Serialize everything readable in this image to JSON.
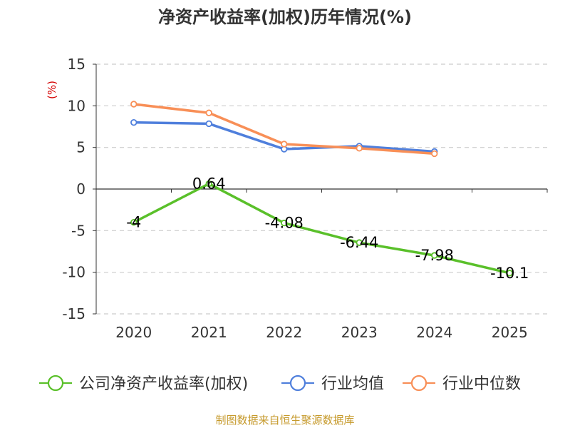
{
  "chart_data": {
    "type": "line",
    "title": "净资产收益率(加权)历年情况(%)",
    "ylabel": "(%)",
    "xlabel": "",
    "categories": [
      "2020",
      "2021",
      "2022",
      "2023",
      "2024",
      "2025"
    ],
    "ylim": [
      -15,
      15
    ],
    "yticks": [
      15,
      10,
      5,
      0,
      -5,
      -10,
      -15
    ],
    "ytick_labels": [
      "15",
      "10",
      "5",
      "0",
      "-5",
      "-10",
      "-15"
    ],
    "grid": true,
    "legend_position": "bottom",
    "series": [
      {
        "name": "公司净资产收益率(加权)",
        "color": "#5ac02a",
        "values": [
          -4,
          0.64,
          -4.08,
          -6.44,
          -7.98,
          -10.1
        ],
        "data_labels": [
          "-4",
          "0.64",
          "-4.08",
          "-6.44",
          "-7.98",
          "-10.1"
        ]
      },
      {
        "name": "行业均值",
        "color": "#4f7fdc",
        "values": [
          8.0,
          7.85,
          4.8,
          5.15,
          4.5,
          null
        ]
      },
      {
        "name": "行业中位数",
        "color": "#f88f57",
        "values": [
          10.2,
          9.15,
          5.4,
          4.9,
          4.25,
          null
        ]
      }
    ]
  },
  "footer": {
    "source": "制图数据来自恒生聚源数据库",
    "source_color": "#c69a2c"
  },
  "colors": {
    "axis": "#333333",
    "grid": "#cccccc",
    "ylabel": "#d40000"
  }
}
